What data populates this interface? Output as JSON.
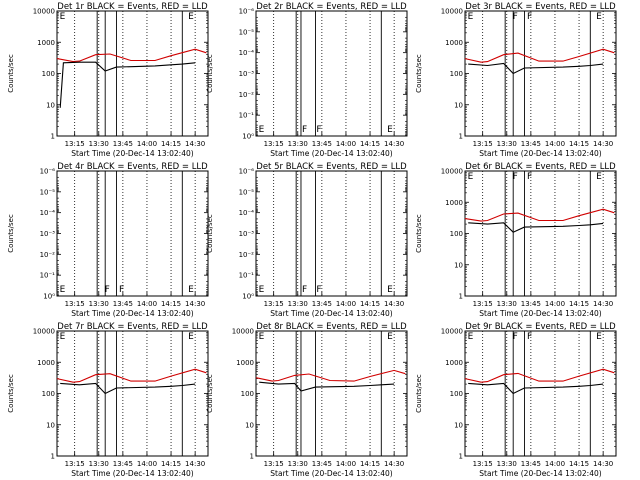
{
  "chart_data": [
    {
      "type": "line",
      "title": "Det 1r BLACK = Events, RED = LLD",
      "xlabel": "Start Time (20-Dec-14 13:02:40)",
      "ylabel": "Counts/sec",
      "scale": "log",
      "ylim": [
        1,
        10000
      ],
      "yticks": [
        1,
        10,
        100,
        1000,
        10000
      ],
      "ytick_labels": [
        "1",
        "10",
        "100",
        "1000",
        "10000"
      ],
      "xlim": [
        "13:04",
        "14:38"
      ],
      "xticks": [
        "13:15",
        "13:30",
        "13:45",
        "14:00",
        "14:15",
        "14:30"
      ],
      "dotted_lines": [
        "13:15",
        "13:30",
        "13:45",
        "14:00",
        "14:15",
        "14:30"
      ],
      "solid_lines": [
        "13:29",
        "13:34",
        "13:41",
        "14:22"
      ],
      "markers": [
        {
          "text": "E",
          "at": "13:05"
        },
        {
          "text": "E",
          "at": "14:25"
        }
      ],
      "series": [
        {
          "color": "#d00000",
          "x": [
            "13:04",
            "13:14",
            "13:18",
            "13:28",
            "13:37",
            "13:50",
            "14:05",
            "14:15",
            "14:30",
            "14:37"
          ],
          "y": [
            300,
            240,
            250,
            400,
            420,
            260,
            260,
            370,
            600,
            460
          ]
        },
        {
          "color": "#000000",
          "x": [
            "13:06",
            "13:08",
            "13:18",
            "13:28",
            "13:34",
            "13:41",
            "14:05",
            "14:15",
            "14:22",
            "14:30"
          ],
          "y": [
            8,
            220,
            230,
            230,
            120,
            160,
            175,
            190,
            200,
            220
          ]
        }
      ]
    },
    {
      "type": "line",
      "title": "Det 2r BLACK = Events, RED = LLD",
      "xlabel": "Start Time (20-Dec-14 13:02:40)",
      "ylabel": "Counts/sec",
      "scale": "log",
      "ylim": [
        1,
        1e-06
      ],
      "yticks": [
        1,
        0.1,
        0.01,
        0.001,
        0.0001,
        1e-05,
        1e-06
      ],
      "ytick_labels": [
        "10⁰",
        "10⁻¹",
        "10⁻²",
        "10⁻³",
        "10⁻⁴",
        "10⁻⁵",
        "10⁻⁶"
      ],
      "xlim": [
        "13:04",
        "14:38"
      ],
      "xticks": [
        "13:15",
        "13:30",
        "13:45",
        "14:00",
        "14:15",
        "14:30"
      ],
      "dotted_lines": [
        "13:15",
        "13:30",
        "13:45",
        "14:00",
        "14:15",
        "14:30"
      ],
      "solid_lines": [
        "13:29",
        "13:32",
        "13:41",
        "14:22"
      ],
      "markers": [
        {
          "text": "E",
          "at": "13:05"
        },
        {
          "text": "F",
          "at": "13:32"
        },
        {
          "text": "F",
          "at": "13:41"
        },
        {
          "text": "E",
          "at": "14:25"
        }
      ],
      "series": []
    },
    {
      "type": "line",
      "title": "Det 3r BLACK = Events, RED = LLD",
      "xlabel": "Start Time (20-Dec-14 13:02:40)",
      "ylabel": "Counts/sec",
      "scale": "log",
      "ylim": [
        1,
        10000
      ],
      "yticks": [
        1,
        10,
        100,
        1000,
        10000
      ],
      "ytick_labels": [
        "1",
        "10",
        "100",
        "1000",
        "10000"
      ],
      "xlim": [
        "13:04",
        "14:38"
      ],
      "xticks": [
        "13:15",
        "13:30",
        "13:45",
        "14:00",
        "14:15",
        "14:30"
      ],
      "dotted_lines": [
        "13:15",
        "13:30",
        "13:45",
        "14:00",
        "14:15",
        "14:30"
      ],
      "solid_lines": [
        "13:29",
        "13:34",
        "13:41",
        "14:22"
      ],
      "markers": [
        {
          "text": "E",
          "at": "13:05"
        },
        {
          "text": "F",
          "at": "13:33"
        },
        {
          "text": "F",
          "at": "13:42"
        },
        {
          "text": "E",
          "at": "14:25"
        }
      ],
      "series": [
        {
          "color": "#d00000",
          "x": [
            "13:04",
            "13:14",
            "13:18",
            "13:28",
            "13:37",
            "13:50",
            "14:05",
            "14:15",
            "14:30",
            "14:37"
          ],
          "y": [
            300,
            230,
            240,
            400,
            450,
            250,
            250,
            350,
            600,
            460
          ]
        },
        {
          "color": "#000000",
          "x": [
            "13:06",
            "13:18",
            "13:28",
            "13:34",
            "13:41",
            "14:05",
            "14:15",
            "14:22",
            "14:30"
          ],
          "y": [
            200,
            180,
            210,
            100,
            150,
            160,
            170,
            180,
            200
          ]
        }
      ]
    },
    {
      "type": "line",
      "title": "Det 4r BLACK = Events, RED = LLD",
      "xlabel": "Start Time (20-Dec-14 13:02:40)",
      "ylabel": "Counts/sec",
      "scale": "log",
      "ylim": [
        1,
        1e-06
      ],
      "yticks": [
        1,
        0.1,
        0.01,
        0.001,
        0.0001,
        1e-05,
        1e-06
      ],
      "ytick_labels": [
        "10⁰",
        "10⁻¹",
        "10⁻²",
        "10⁻³",
        "10⁻⁴",
        "10⁻⁵",
        "10⁻⁶"
      ],
      "xlim": [
        "13:04",
        "14:38"
      ],
      "xticks": [
        "13:15",
        "13:30",
        "13:45",
        "14:00",
        "14:15",
        "14:30"
      ],
      "dotted_lines": [
        "13:15",
        "13:30",
        "13:45",
        "14:00",
        "14:15",
        "14:30"
      ],
      "solid_lines": [
        "13:29",
        "13:34",
        "13:41",
        "14:22"
      ],
      "markers": [
        {
          "text": "E",
          "at": "13:05"
        },
        {
          "text": "F",
          "at": "13:33"
        },
        {
          "text": "F",
          "at": "13:42"
        },
        {
          "text": "E",
          "at": "14:25"
        }
      ],
      "series": []
    },
    {
      "type": "line",
      "title": "Det 5r BLACK = Events, RED = LLD",
      "xlabel": "Start Time (20-Dec-14 13:02:40)",
      "ylabel": "Counts/sec",
      "scale": "log",
      "ylim": [
        1,
        1e-06
      ],
      "yticks": [
        1,
        0.1,
        0.01,
        0.001,
        0.0001,
        1e-05,
        1e-06
      ],
      "ytick_labels": [
        "10⁰",
        "10⁻¹",
        "10⁻²",
        "10⁻³",
        "10⁻⁴",
        "10⁻⁵",
        "10⁻⁶"
      ],
      "xlim": [
        "13:04",
        "14:38"
      ],
      "xticks": [
        "13:15",
        "13:30",
        "13:45",
        "14:00",
        "14:15",
        "14:30"
      ],
      "dotted_lines": [
        "13:15",
        "13:30",
        "13:45",
        "14:00",
        "14:15",
        "14:30"
      ],
      "solid_lines": [
        "13:29",
        "13:32",
        "13:41",
        "14:22"
      ],
      "markers": [
        {
          "text": "E",
          "at": "13:05"
        },
        {
          "text": "F",
          "at": "13:32"
        },
        {
          "text": "F",
          "at": "13:41"
        },
        {
          "text": "E",
          "at": "14:25"
        }
      ],
      "series": []
    },
    {
      "type": "line",
      "title": "Det 6r BLACK = Events, RED = LLD",
      "xlabel": "Start Time (20-Dec-14 13:02:40)",
      "ylabel": "Counts/sec",
      "scale": "log",
      "ylim": [
        1,
        10000
      ],
      "yticks": [
        1,
        10,
        100,
        1000,
        10000
      ],
      "ytick_labels": [
        "1",
        "10",
        "100",
        "1000",
        "10000"
      ],
      "xlim": [
        "13:04",
        "14:38"
      ],
      "xticks": [
        "13:15",
        "13:30",
        "13:45",
        "14:00",
        "14:15",
        "14:30"
      ],
      "dotted_lines": [
        "13:15",
        "13:30",
        "13:45",
        "14:00",
        "14:15",
        "14:30"
      ],
      "solid_lines": [
        "13:29",
        "13:34",
        "13:41",
        "14:22"
      ],
      "markers": [
        {
          "text": "E",
          "at": "13:05"
        },
        {
          "text": "F",
          "at": "13:33"
        },
        {
          "text": "F",
          "at": "13:42"
        },
        {
          "text": "E",
          "at": "14:25"
        }
      ],
      "series": [
        {
          "color": "#d00000",
          "x": [
            "13:04",
            "13:14",
            "13:18",
            "13:28",
            "13:37",
            "13:50",
            "14:05",
            "14:15",
            "14:30",
            "14:37"
          ],
          "y": [
            300,
            250,
            260,
            420,
            450,
            260,
            260,
            370,
            600,
            460
          ]
        },
        {
          "color": "#000000",
          "x": [
            "13:06",
            "13:18",
            "13:28",
            "13:34",
            "13:41",
            "14:05",
            "14:15",
            "14:22",
            "14:30"
          ],
          "y": [
            220,
            200,
            220,
            110,
            160,
            170,
            180,
            190,
            210
          ]
        }
      ]
    },
    {
      "type": "line",
      "title": "Det 7r BLACK = Events, RED = LLD",
      "xlabel": "Start Time (20-Dec-14 13:02:40)",
      "ylabel": "Counts/sec",
      "scale": "log",
      "ylim": [
        1,
        10000
      ],
      "yticks": [
        1,
        10,
        100,
        1000,
        10000
      ],
      "ytick_labels": [
        "1",
        "10",
        "100",
        "1000",
        "10000"
      ],
      "xlim": [
        "13:04",
        "14:38"
      ],
      "xticks": [
        "13:15",
        "13:30",
        "13:45",
        "14:00",
        "14:15",
        "14:30"
      ],
      "dotted_lines": [
        "13:15",
        "13:30",
        "13:45",
        "14:00",
        "14:15",
        "14:30"
      ],
      "solid_lines": [
        "13:29",
        "13:34",
        "13:41",
        "14:22"
      ],
      "markers": [
        {
          "text": "E",
          "at": "13:05"
        },
        {
          "text": "E",
          "at": "14:25"
        }
      ],
      "series": [
        {
          "color": "#d00000",
          "x": [
            "13:04",
            "13:14",
            "13:18",
            "13:28",
            "13:37",
            "13:50",
            "14:05",
            "14:15",
            "14:30",
            "14:37"
          ],
          "y": [
            300,
            230,
            240,
            400,
            430,
            250,
            250,
            360,
            600,
            460
          ]
        },
        {
          "color": "#000000",
          "x": [
            "13:06",
            "13:18",
            "13:28",
            "13:34",
            "13:41",
            "14:05",
            "14:15",
            "14:22",
            "14:30"
          ],
          "y": [
            210,
            190,
            210,
            100,
            150,
            160,
            170,
            180,
            200
          ]
        }
      ]
    },
    {
      "type": "line",
      "title": "Det 8r BLACK = Events, RED = LLD",
      "xlabel": "Start Time (20-Dec-14 13:02:40)",
      "ylabel": "Counts/sec",
      "scale": "log",
      "ylim": [
        1,
        10000
      ],
      "yticks": [
        1,
        10,
        100,
        1000,
        10000
      ],
      "ytick_labels": [
        "1",
        "10",
        "100",
        "1000",
        "10000"
      ],
      "xlim": [
        "13:04",
        "14:38"
      ],
      "xticks": [
        "13:15",
        "13:30",
        "13:45",
        "14:00",
        "14:15",
        "14:30"
      ],
      "dotted_lines": [
        "13:15",
        "13:30",
        "13:45",
        "14:00",
        "14:15",
        "14:30"
      ],
      "solid_lines": [
        "13:29",
        "13:32",
        "13:41",
        "14:22"
      ],
      "markers": [
        {
          "text": "E",
          "at": "13:05"
        },
        {
          "text": "E",
          "at": "14:25"
        }
      ],
      "series": [
        {
          "color": "#d00000",
          "x": [
            "13:04",
            "13:14",
            "13:18",
            "13:28",
            "13:37",
            "13:50",
            "14:05",
            "14:15",
            "14:30",
            "14:37"
          ],
          "y": [
            320,
            250,
            260,
            380,
            420,
            260,
            250,
            350,
            550,
            430
          ]
        },
        {
          "color": "#000000",
          "x": [
            "13:06",
            "13:18",
            "13:28",
            "13:32",
            "13:41",
            "14:05",
            "14:15",
            "14:22",
            "14:30"
          ],
          "y": [
            230,
            200,
            210,
            120,
            160,
            170,
            180,
            190,
            200
          ]
        }
      ]
    },
    {
      "type": "line",
      "title": "Det 9r BLACK = Events, RED = LLD",
      "xlabel": "Start Time (20-Dec-14 13:02:40)",
      "ylabel": "Counts/sec",
      "scale": "log",
      "ylim": [
        1,
        10000
      ],
      "yticks": [
        1,
        10,
        100,
        1000,
        10000
      ],
      "ytick_labels": [
        "1",
        "10",
        "100",
        "1000",
        "10000"
      ],
      "xlim": [
        "13:04",
        "14:38"
      ],
      "xticks": [
        "13:15",
        "13:30",
        "13:45",
        "14:00",
        "14:15",
        "14:30"
      ],
      "dotted_lines": [
        "13:15",
        "13:30",
        "13:45",
        "14:00",
        "14:15",
        "14:30"
      ],
      "solid_lines": [
        "13:29",
        "13:34",
        "13:41",
        "14:22"
      ],
      "markers": [
        {
          "text": "E",
          "at": "13:05"
        },
        {
          "text": "F",
          "at": "13:33"
        },
        {
          "text": "F",
          "at": "13:42"
        },
        {
          "text": "E",
          "at": "14:25"
        }
      ],
      "series": [
        {
          "color": "#d00000",
          "x": [
            "13:04",
            "13:14",
            "13:18",
            "13:28",
            "13:37",
            "13:50",
            "14:05",
            "14:15",
            "14:30",
            "14:37"
          ],
          "y": [
            300,
            230,
            240,
            400,
            440,
            250,
            250,
            360,
            600,
            460
          ]
        },
        {
          "color": "#000000",
          "x": [
            "13:06",
            "13:18",
            "13:28",
            "13:34",
            "13:41",
            "14:05",
            "14:15",
            "14:22",
            "14:30"
          ],
          "y": [
            210,
            190,
            210,
            100,
            150,
            160,
            170,
            180,
            200
          ]
        }
      ]
    }
  ]
}
